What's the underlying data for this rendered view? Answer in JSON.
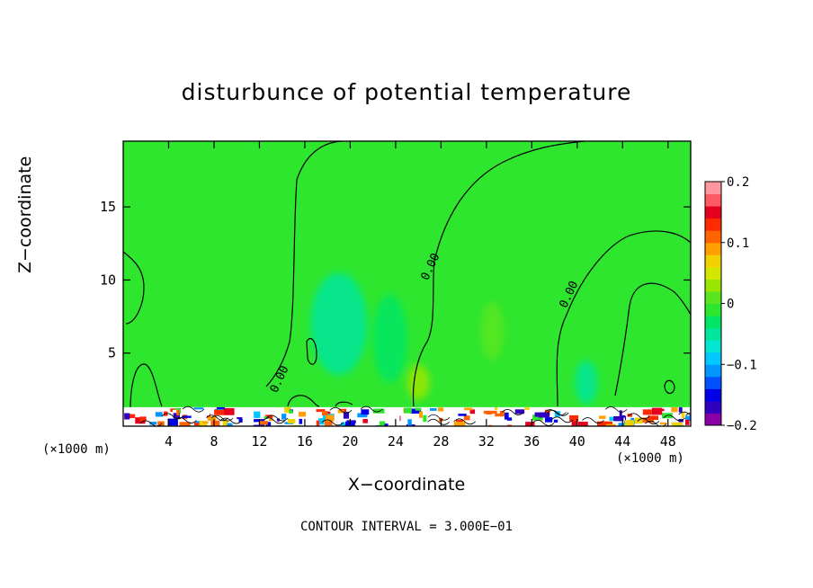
{
  "chart_data": {
    "type": "heatmap",
    "title": "disturbunce of potential temperature",
    "xlabel": "X−coordinate",
    "ylabel": "Z−coordinate",
    "x_unit": "(×1000 m)",
    "xlim": [
      0,
      50
    ],
    "ylim": [
      0,
      19.5
    ],
    "x_ticks": [
      4,
      8,
      12,
      16,
      20,
      24,
      28,
      32,
      36,
      40,
      44,
      48
    ],
    "y_ticks": [
      5,
      10,
      15
    ],
    "x_tick_labels": [
      "4",
      "8",
      "12",
      "16",
      "20",
      "24",
      "28",
      "32",
      "36",
      "40",
      "44",
      "48"
    ],
    "y_tick_labels": [
      "5",
      "10",
      "15"
    ],
    "colorbar": {
      "min": -0.2,
      "max": 0.2,
      "tick_values": [
        0.2,
        0.1,
        0,
        -0.1,
        -0.2
      ],
      "tick_labels": [
        "0.2",
        "0.1",
        "0",
        "−0.1",
        "−0.2"
      ],
      "colors": [
        "#8a00a6",
        "#3000c0",
        "#0000e6",
        "#0050ff",
        "#0096ff",
        "#00c8ff",
        "#00e6d2",
        "#00e69b",
        "#00e664",
        "#2ee62e",
        "#5ae61e",
        "#9ae600",
        "#d2e600",
        "#f0d200",
        "#ffa000",
        "#ff6400",
        "#ff2a00",
        "#e6001e",
        "#ff5a64",
        "#ff96a0"
      ]
    },
    "contour_labels": [
      {
        "text": "0.00",
        "x": 13.8,
        "z": 3.2
      },
      {
        "text": "0.00",
        "x": 27.1,
        "z": 10.9
      },
      {
        "text": "0.00",
        "x": 39.3,
        "z": 9.0
      }
    ],
    "contour_interval_note": "CONTOUR INTERVAL = 3.000E−01",
    "anomaly_regions": [
      {
        "cx": 19,
        "cz": 7,
        "rx": 2.5,
        "rz": 3.5,
        "value": -0.04
      },
      {
        "cx": 23.5,
        "cz": 6,
        "rx": 1.5,
        "rz": 3,
        "value": -0.03
      },
      {
        "cx": 32.5,
        "cz": 6.5,
        "rx": 1,
        "rz": 2,
        "value": 0.02
      },
      {
        "cx": 26,
        "cz": 3,
        "rx": 1,
        "rz": 1.2,
        "value": 0.03
      },
      {
        "cx": 40.8,
        "cz": 3,
        "rx": 1,
        "rz": 1.5,
        "value": -0.06
      }
    ],
    "surface_layer_top": 1.3
  }
}
